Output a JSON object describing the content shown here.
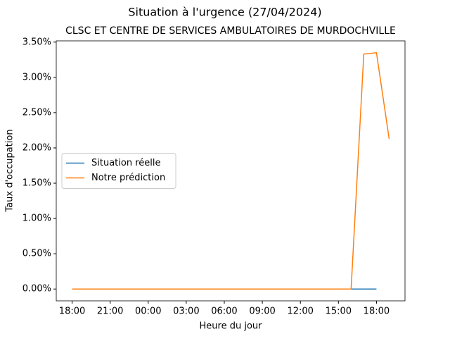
{
  "chart_data": {
    "type": "line",
    "suptitle": "Situation à l'urgence (27/04/2024)",
    "title": "CLSC ET CENTRE DE SERVICES AMBULATOIRES DE MURDOCHVILLE",
    "xlabel": "Heure du jour",
    "ylabel": "Taux d'occupation",
    "x": [
      0,
      1,
      2,
      3,
      4,
      5,
      6,
      7,
      8,
      9,
      10,
      11,
      12,
      13,
      14,
      15,
      16,
      17,
      18,
      19,
      20,
      21,
      22,
      23,
      24,
      25
    ],
    "series": [
      {
        "name": "Situation réelle",
        "color": "#1f77b4",
        "values": [
          0,
          0,
          0,
          0,
          0,
          0,
          0,
          0,
          0,
          0,
          0,
          0,
          0,
          0,
          0,
          0,
          0,
          0,
          0,
          0,
          0,
          0,
          0,
          0,
          0,
          null
        ]
      },
      {
        "name": "Notre prédiction",
        "color": "#ff7f0e",
        "values": [
          0,
          0,
          0,
          0,
          0,
          0,
          0,
          0,
          0,
          0,
          0,
          0,
          0,
          0,
          0,
          0,
          0,
          0,
          0,
          0,
          0,
          0,
          0,
          3.33,
          3.35,
          2.13
        ]
      }
    ],
    "xlim": [
      -1.25,
      26.25
    ],
    "ylim": [
      -0.1675,
      3.5175
    ],
    "xticks": [
      {
        "value": 0,
        "label": "18:00"
      },
      {
        "value": 3,
        "label": "21:00"
      },
      {
        "value": 6,
        "label": "00:00"
      },
      {
        "value": 9,
        "label": "03:00"
      },
      {
        "value": 12,
        "label": "06:00"
      },
      {
        "value": 15,
        "label": "09:00"
      },
      {
        "value": 18,
        "label": "12:00"
      },
      {
        "value": 21,
        "label": "15:00"
      },
      {
        "value": 24,
        "label": "18:00"
      }
    ],
    "yticks": [
      {
        "value": 0,
        "label": "0.00%"
      },
      {
        "value": 0.5,
        "label": "0.50%"
      },
      {
        "value": 1,
        "label": "1.00%"
      },
      {
        "value": 1.5,
        "label": "1.50%"
      },
      {
        "value": 2,
        "label": "2.00%"
      },
      {
        "value": 2.5,
        "label": "2.50%"
      },
      {
        "value": 3,
        "label": "3.00%"
      },
      {
        "value": 3.5,
        "label": "3.50%"
      }
    ],
    "legend": "center left"
  }
}
